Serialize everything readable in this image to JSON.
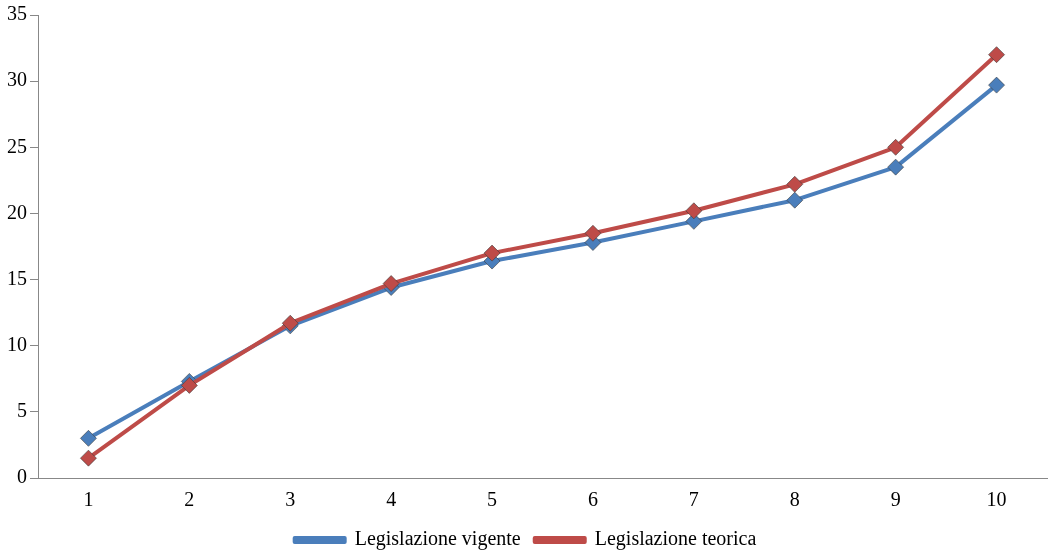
{
  "chart_data": {
    "type": "line",
    "categories": [
      "1",
      "2",
      "3",
      "4",
      "5",
      "6",
      "7",
      "8",
      "9",
      "10"
    ],
    "series": [
      {
        "name": "Legislazione vigente",
        "color": "#4a7ebb",
        "values": [
          3.0,
          7.3,
          11.5,
          14.4,
          16.4,
          17.8,
          19.4,
          21.0,
          23.5,
          29.7
        ]
      },
      {
        "name": "Legislazione teorica",
        "color": "#be4b48",
        "values": [
          1.5,
          7.0,
          11.7,
          14.7,
          17.0,
          18.5,
          20.2,
          22.2,
          25.0,
          32.0
        ]
      }
    ],
    "ylim": [
      0,
      35
    ],
    "yticks": [
      0,
      5,
      10,
      15,
      20,
      25,
      30,
      35
    ],
    "grid": false,
    "legend": "bottom",
    "marker": "diamond",
    "line_style": "solid"
  }
}
